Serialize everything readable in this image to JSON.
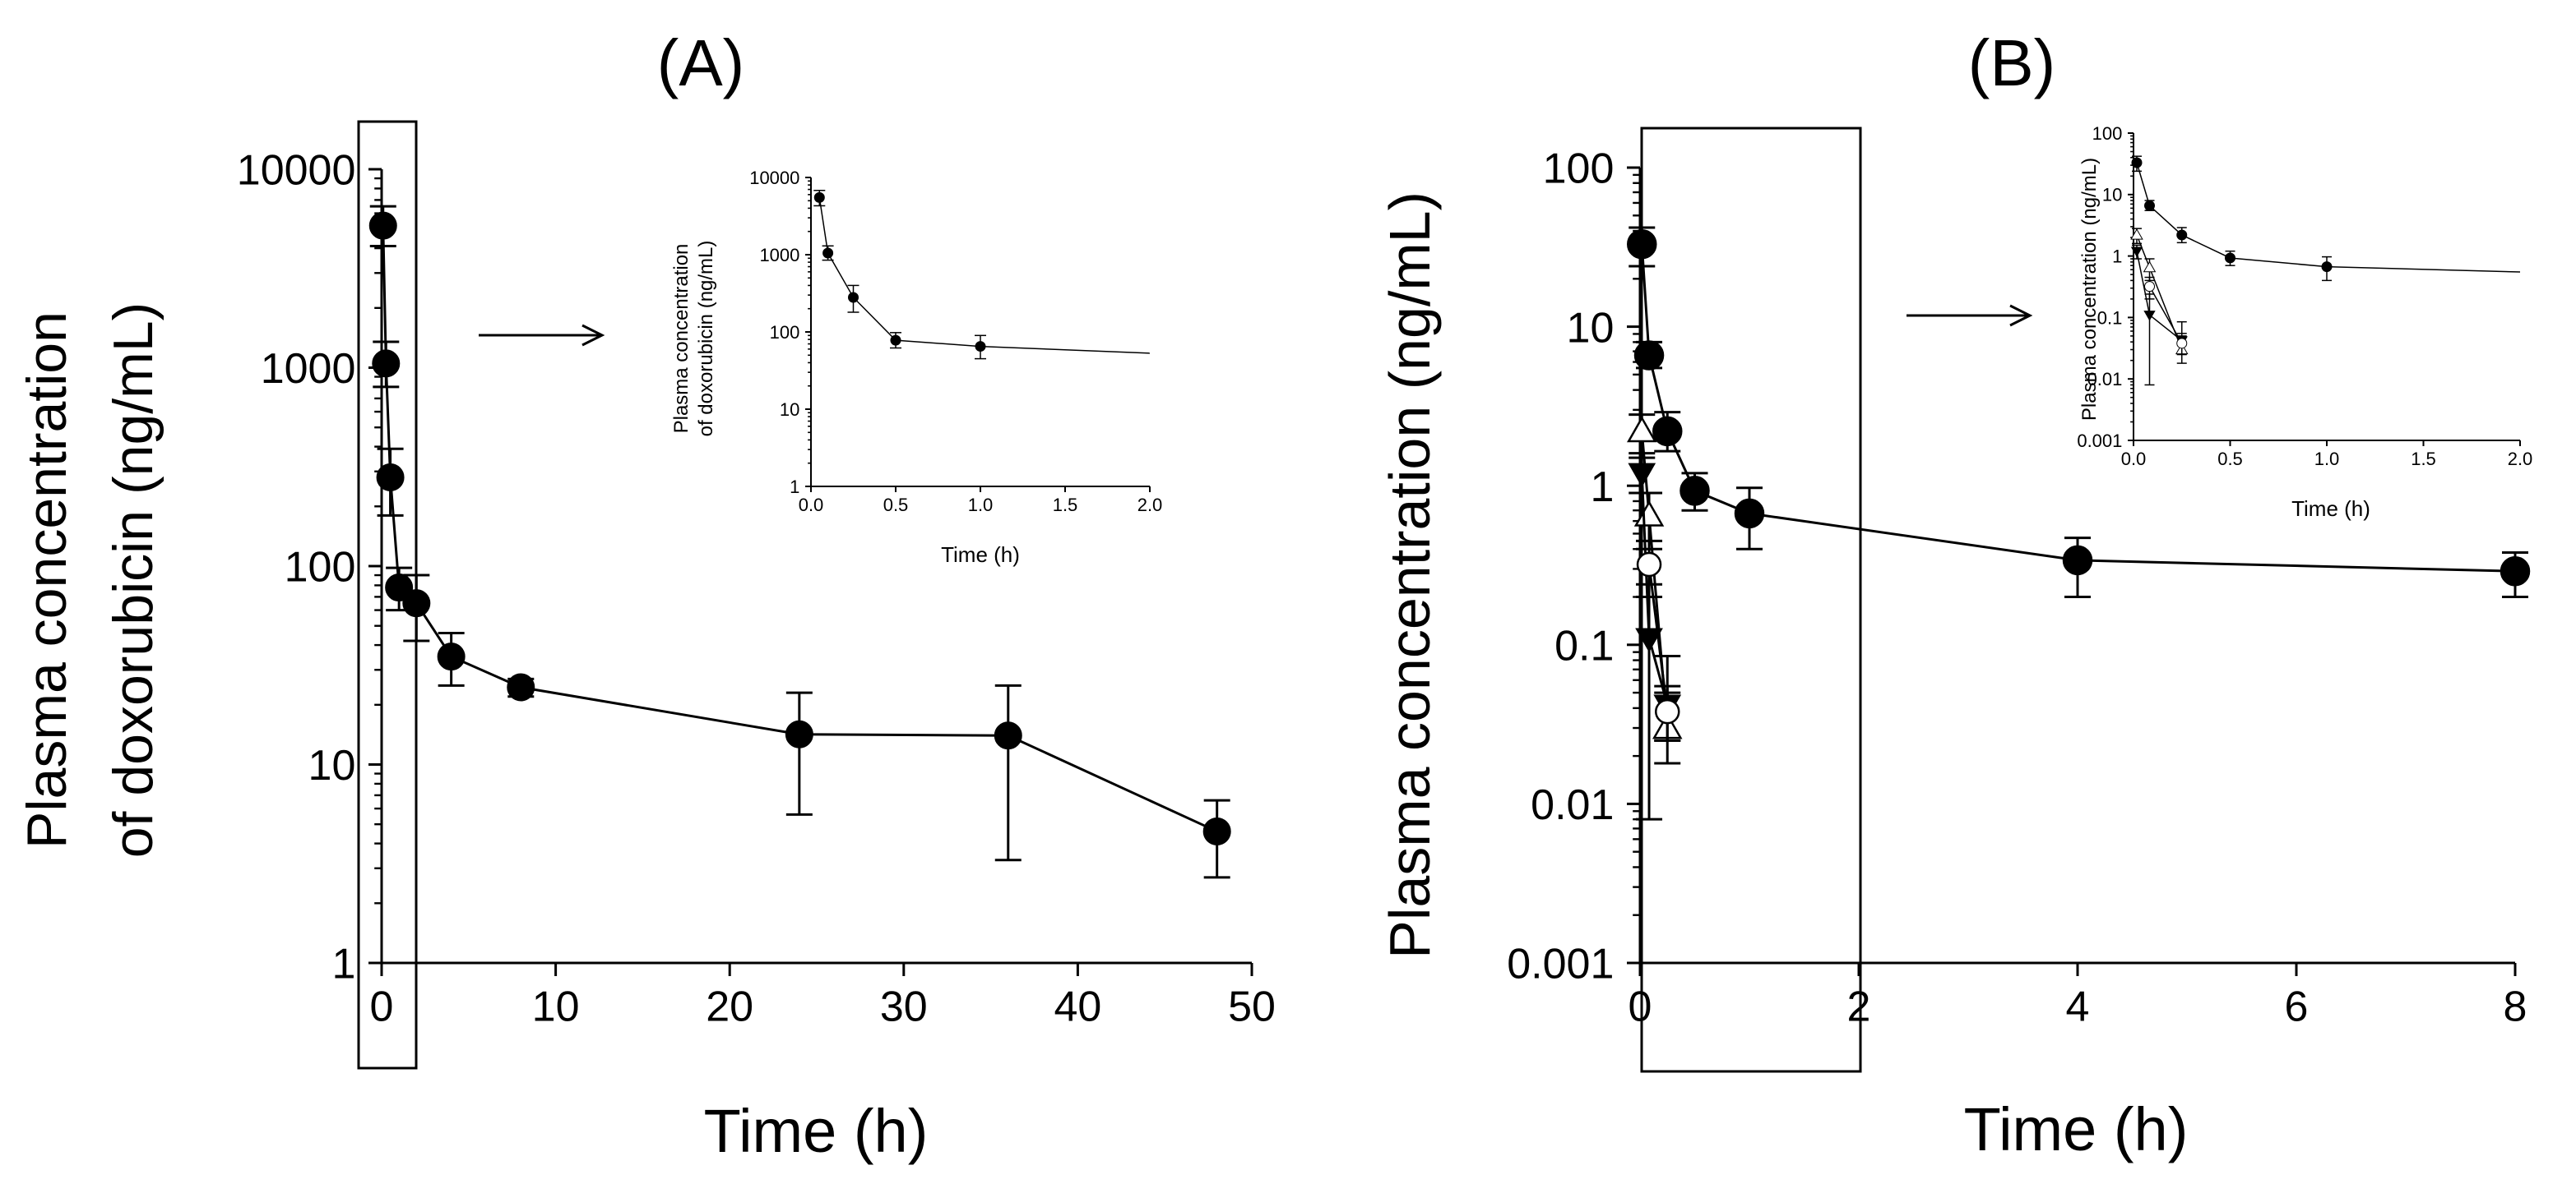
{
  "colors": {
    "ink": "#000000",
    "background": "#ffffff",
    "open_marker": "#ffffff"
  },
  "chart_data": [
    {
      "id": "A",
      "type": "line",
      "panel_label": "(A)",
      "title": "",
      "xlabel": "Time (h)",
      "ylabel_lines": [
        "Plasma concentration",
        "of doxorubicin (ng/mL)"
      ],
      "yscale": "log",
      "xlim": [
        0,
        50
      ],
      "ylim": [
        1,
        10000
      ],
      "xticks": [
        "0",
        "10",
        "20",
        "30",
        "40",
        "50"
      ],
      "yticks": [
        "1",
        "10",
        "100",
        "1000",
        "10000"
      ],
      "series": [
        {
          "name": "doxorubicin",
          "marker": "filled-circle",
          "x": [
            0.083,
            0.25,
            0.5,
            1,
            2,
            4,
            8,
            24,
            36,
            48
          ],
          "y": [
            5200,
            1050,
            280,
            78,
            65,
            35,
            24.5,
            14.2,
            14,
            4.6
          ],
          "err_low": [
            4100,
            800,
            180,
            60,
            42,
            25,
            22,
            5.6,
            3.3,
            2.7
          ],
          "err_high": [
            6500,
            1350,
            390,
            98,
            90,
            46,
            27,
            23,
            25,
            6.6
          ]
        }
      ],
      "inset": {
        "xlabel": "Time (h)",
        "ylabel_lines": [
          "Plasma concentration",
          "of doxorubicin (ng/mL)"
        ],
        "yscale": "log",
        "xlim": [
          0,
          2
        ],
        "ylim": [
          1,
          10000
        ],
        "xticks": [
          "0.0",
          "0.5",
          "1.0",
          "1.5",
          "2.0"
        ],
        "yticks": [
          "1",
          "10",
          "100",
          "1000",
          "10000"
        ],
        "points": {
          "x": [
            0.05,
            0.1,
            0.25,
            0.5,
            1
          ],
          "y": [
            5500,
            1050,
            280,
            78,
            65
          ],
          "err_low": [
            4300,
            850,
            180,
            62,
            45
          ],
          "err_high": [
            6800,
            1300,
            400,
            98,
            90
          ]
        },
        "fit_line": {
          "x": [
            1,
            2
          ],
          "y": [
            65,
            53
          ]
        }
      }
    },
    {
      "id": "B",
      "type": "line",
      "panel_label": "(B)",
      "title": "",
      "xlabel": "Time (h)",
      "ylabel": "Plasma concentration (ng/mL)",
      "yscale": "log",
      "xlim": [
        0,
        8
      ],
      "ylim": [
        0.001,
        100
      ],
      "xticks": [
        "0",
        "2",
        "4",
        "6",
        "8"
      ],
      "yticks": [
        "0.001",
        "0.01",
        "0.1",
        "1",
        "10",
        "100"
      ],
      "series": [
        {
          "name": "series-1",
          "marker": "filled-circle",
          "x": [
            0.017,
            0.083,
            0.25,
            0.5,
            1,
            4,
            8
          ],
          "y": [
            33,
            6.6,
            2.2,
            0.93,
            0.67,
            0.34,
            0.29
          ],
          "err_low": [
            24,
            5.5,
            1.65,
            0.7,
            0.4,
            0.2,
            0.2
          ],
          "err_high": [
            42,
            8,
            2.9,
            1.2,
            0.97,
            0.47,
            0.38
          ]
        },
        {
          "name": "series-2",
          "marker": "open-triangle-up",
          "x": [
            0.017,
            0.083,
            0.25
          ],
          "y": [
            2.2,
            0.65,
            0.03
          ],
          "err_low": [
            1.6,
            0.4,
            0.018
          ],
          "err_high": [
            2.8,
            0.9,
            0.05
          ]
        },
        {
          "name": "series-3",
          "marker": "filled-triangle-down",
          "x": [
            0.017,
            0.083,
            0.25
          ],
          "y": [
            1.2,
            0.11,
            0.042
          ],
          "err_low": [
            0.9,
            0.008,
            0.025
          ],
          "err_high": [
            1.5,
            0.24,
            0.085
          ]
        },
        {
          "name": "series-4",
          "marker": "open-circle",
          "x": [
            0.083,
            0.25
          ],
          "y": [
            0.32,
            0.038
          ],
          "err_low": [
            0.2,
            0.025
          ],
          "err_high": [
            0.45,
            0.055
          ]
        }
      ],
      "inset": {
        "xlabel": "Time (h)",
        "ylabel": "Plasma concentration (ng/mL)",
        "yscale": "log",
        "xlim": [
          0,
          2
        ],
        "ylim": [
          0.001,
          100
        ],
        "xticks": [
          "0.0",
          "0.5",
          "1.0",
          "1.5",
          "2.0"
        ],
        "yticks": [
          "0.001",
          "0.01",
          "0.1",
          "1",
          "10",
          "100"
        ],
        "series": [
          {
            "name": "series-1",
            "marker": "filled-circle",
            "x": [
              0.017,
              0.083,
              0.25,
              0.5,
              1
            ],
            "y": [
              33,
              6.6,
              2.2,
              0.93,
              0.67
            ],
            "err_low": [
              24,
              5.5,
              1.65,
              0.7,
              0.4
            ],
            "err_high": [
              42,
              8,
              2.9,
              1.2,
              0.97
            ]
          },
          {
            "name": "series-2",
            "marker": "open-triangle-up",
            "x": [
              0.017,
              0.083,
              0.25
            ],
            "y": [
              2.2,
              0.65,
              0.03
            ],
            "err_low": [
              1.6,
              0.4,
              0.018
            ],
            "err_high": [
              2.8,
              0.9,
              0.05
            ]
          },
          {
            "name": "series-3",
            "marker": "filled-triangle-down",
            "x": [
              0.017,
              0.083,
              0.25
            ],
            "y": [
              1.2,
              0.11,
              0.042
            ],
            "err_low": [
              0.9,
              0.008,
              0.025
            ],
            "err_high": [
              1.5,
              0.24,
              0.085
            ]
          },
          {
            "name": "series-4",
            "marker": "open-circle",
            "x": [
              0.083,
              0.25
            ],
            "y": [
              0.32,
              0.038
            ],
            "err_low": [
              0.2,
              0.025
            ],
            "err_high": [
              0.45,
              0.055
            ]
          }
        ],
        "fit_line": {
          "x": [
            1,
            2
          ],
          "y": [
            0.67,
            0.55
          ]
        }
      }
    }
  ]
}
